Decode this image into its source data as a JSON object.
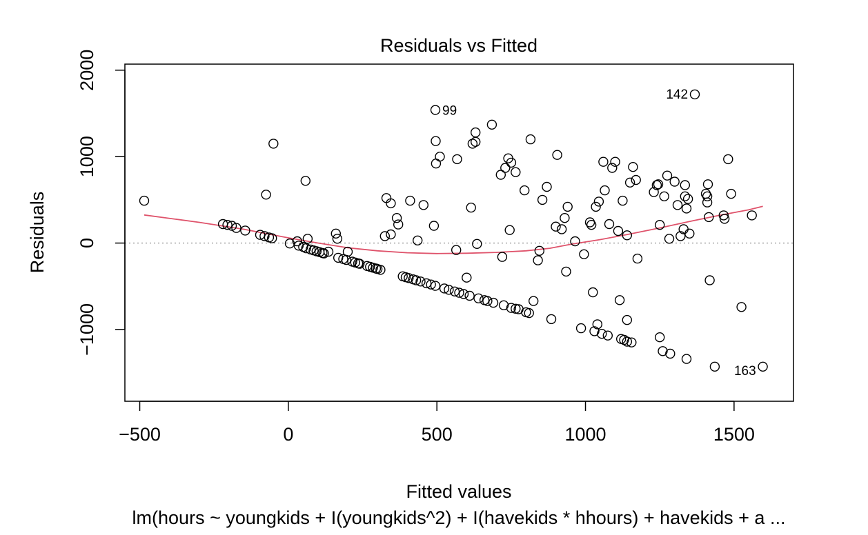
{
  "chart_data": {
    "type": "scatter",
    "title": "Residuals vs Fitted",
    "xlabel": "Fitted values",
    "ylabel": "Residuals",
    "caption": "lm(hours ~ youngkids + I(youngkids^2) + I(havekids * hhours) + havekids + a ...",
    "xlim": [
      -550,
      1700
    ],
    "ylim": [
      -1830,
      2070
    ],
    "x_ticks": [
      -500,
      0,
      500,
      1000,
      1500
    ],
    "y_ticks": [
      -1000,
      0,
      1000,
      2000
    ],
    "x_tick_labels": [
      "−500",
      "0",
      "500",
      "1000",
      "1500"
    ],
    "y_tick_labels": [
      "−1000",
      "0",
      "1000",
      "2000"
    ],
    "reference_line": {
      "y": 0,
      "style": "dotted",
      "color": "#999999"
    },
    "colors": {
      "points": "#000000",
      "smooth": "#DF536B"
    },
    "labeled_points": [
      {
        "x": 495,
        "y": 1540,
        "label": "99"
      },
      {
        "x": 1368,
        "y": 1720,
        "label": "142"
      },
      {
        "x": 1597,
        "y": -1430,
        "label": "163"
      }
    ],
    "points": [
      [
        -485,
        490
      ],
      [
        -50,
        1150
      ],
      [
        58,
        720
      ],
      [
        -75,
        560
      ],
      [
        -220,
        220
      ],
      [
        -205,
        210
      ],
      [
        -190,
        200
      ],
      [
        -175,
        175
      ],
      [
        -145,
        145
      ],
      [
        -95,
        95
      ],
      [
        -80,
        80
      ],
      [
        -65,
        65
      ],
      [
        -55,
        55
      ],
      [
        5,
        -5
      ],
      [
        30,
        20
      ],
      [
        35,
        -30
      ],
      [
        50,
        -45
      ],
      [
        60,
        -60
      ],
      [
        65,
        50
      ],
      [
        75,
        -75
      ],
      [
        85,
        -85
      ],
      [
        95,
        -95
      ],
      [
        105,
        -105
      ],
      [
        115,
        -115
      ],
      [
        120,
        -120
      ],
      [
        135,
        -100
      ],
      [
        160,
        110
      ],
      [
        165,
        50
      ],
      [
        168,
        -170
      ],
      [
        185,
        -185
      ],
      [
        195,
        -195
      ],
      [
        200,
        -100
      ],
      [
        215,
        -215
      ],
      [
        225,
        -225
      ],
      [
        235,
        -235
      ],
      [
        240,
        -240
      ],
      [
        265,
        -265
      ],
      [
        275,
        -275
      ],
      [
        285,
        -285
      ],
      [
        295,
        -295
      ],
      [
        300,
        -300
      ],
      [
        310,
        -310
      ],
      [
        325,
        80
      ],
      [
        330,
        520
      ],
      [
        345,
        460
      ],
      [
        345,
        100
      ],
      [
        365,
        290
      ],
      [
        370,
        215
      ],
      [
        385,
        -385
      ],
      [
        395,
        -395
      ],
      [
        405,
        -405
      ],
      [
        410,
        490
      ],
      [
        420,
        -420
      ],
      [
        430,
        -430
      ],
      [
        435,
        30
      ],
      [
        445,
        -445
      ],
      [
        455,
        440
      ],
      [
        465,
        -465
      ],
      [
        480,
        -480
      ],
      [
        490,
        200
      ],
      [
        495,
        -495
      ],
      [
        495,
        1540
      ],
      [
        496,
        1180
      ],
      [
        497,
        920
      ],
      [
        510,
        1000
      ],
      [
        525,
        -525
      ],
      [
        540,
        -540
      ],
      [
        560,
        -560
      ],
      [
        565,
        -80
      ],
      [
        568,
        970
      ],
      [
        575,
        -575
      ],
      [
        590,
        -590
      ],
      [
        600,
        -400
      ],
      [
        610,
        -610
      ],
      [
        615,
        410
      ],
      [
        620,
        1150
      ],
      [
        630,
        1280
      ],
      [
        630,
        1170
      ],
      [
        635,
        -10
      ],
      [
        640,
        -640
      ],
      [
        660,
        -660
      ],
      [
        670,
        -670
      ],
      [
        685,
        1370
      ],
      [
        690,
        -690
      ],
      [
        715,
        790
      ],
      [
        720,
        -160
      ],
      [
        725,
        -720
      ],
      [
        730,
        870
      ],
      [
        740,
        980
      ],
      [
        745,
        150
      ],
      [
        750,
        930
      ],
      [
        750,
        -750
      ],
      [
        765,
        -760
      ],
      [
        765,
        820
      ],
      [
        775,
        -765
      ],
      [
        795,
        610
      ],
      [
        800,
        -800
      ],
      [
        810,
        -810
      ],
      [
        815,
        1200
      ],
      [
        825,
        -670
      ],
      [
        840,
        -200
      ],
      [
        845,
        -90
      ],
      [
        855,
        500
      ],
      [
        870,
        650
      ],
      [
        885,
        -880
      ],
      [
        900,
        190
      ],
      [
        905,
        1020
      ],
      [
        920,
        160
      ],
      [
        930,
        290
      ],
      [
        935,
        -330
      ],
      [
        940,
        420
      ],
      [
        965,
        20
      ],
      [
        985,
        -985
      ],
      [
        995,
        -130
      ],
      [
        1015,
        240
      ],
      [
        1020,
        210
      ],
      [
        1025,
        -570
      ],
      [
        1030,
        -1020
      ],
      [
        1035,
        420
      ],
      [
        1040,
        -940
      ],
      [
        1045,
        480
      ],
      [
        1055,
        -1050
      ],
      [
        1060,
        940
      ],
      [
        1065,
        610
      ],
      [
        1075,
        -1070
      ],
      [
        1080,
        220
      ],
      [
        1090,
        870
      ],
      [
        1100,
        940
      ],
      [
        1110,
        140
      ],
      [
        1115,
        -660
      ],
      [
        1120,
        -1110
      ],
      [
        1125,
        490
      ],
      [
        1130,
        -1120
      ],
      [
        1140,
        -890
      ],
      [
        1140,
        90
      ],
      [
        1140,
        -1140
      ],
      [
        1150,
        700
      ],
      [
        1155,
        -1150
      ],
      [
        1160,
        880
      ],
      [
        1170,
        730
      ],
      [
        1175,
        -180
      ],
      [
        1230,
        590
      ],
      [
        1240,
        670
      ],
      [
        1245,
        680
      ],
      [
        1250,
        210
      ],
      [
        1250,
        -1090
      ],
      [
        1260,
        -1250
      ],
      [
        1265,
        540
      ],
      [
        1275,
        780
      ],
      [
        1282,
        50
      ],
      [
        1285,
        -1280
      ],
      [
        1300,
        710
      ],
      [
        1310,
        440
      ],
      [
        1320,
        80
      ],
      [
        1330,
        160
      ],
      [
        1335,
        670
      ],
      [
        1335,
        540
      ],
      [
        1340,
        400
      ],
      [
        1340,
        -1340
      ],
      [
        1345,
        510
      ],
      [
        1350,
        110
      ],
      [
        1368,
        1720
      ],
      [
        1405,
        570
      ],
      [
        1410,
        540
      ],
      [
        1410,
        470
      ],
      [
        1412,
        680
      ],
      [
        1415,
        300
      ],
      [
        1418,
        -430
      ],
      [
        1435,
        -1430
      ],
      [
        1465,
        320
      ],
      [
        1468,
        280
      ],
      [
        1480,
        970
      ],
      [
        1490,
        570
      ],
      [
        1525,
        -740
      ],
      [
        1560,
        320
      ],
      [
        1597,
        -1430
      ]
    ],
    "smooth_line": [
      [
        -485,
        325
      ],
      [
        -300,
        240
      ],
      [
        -150,
        160
      ],
      [
        0,
        60
      ],
      [
        100,
        0
      ],
      [
        200,
        -55
      ],
      [
        300,
        -90
      ],
      [
        400,
        -112
      ],
      [
        500,
        -122
      ],
      [
        600,
        -118
      ],
      [
        700,
        -108
      ],
      [
        800,
        -90
      ],
      [
        880,
        -60
      ],
      [
        950,
        -15
      ],
      [
        1050,
        40
      ],
      [
        1150,
        105
      ],
      [
        1250,
        175
      ],
      [
        1350,
        250
      ],
      [
        1450,
        320
      ],
      [
        1550,
        385
      ],
      [
        1597,
        425
      ]
    ]
  }
}
